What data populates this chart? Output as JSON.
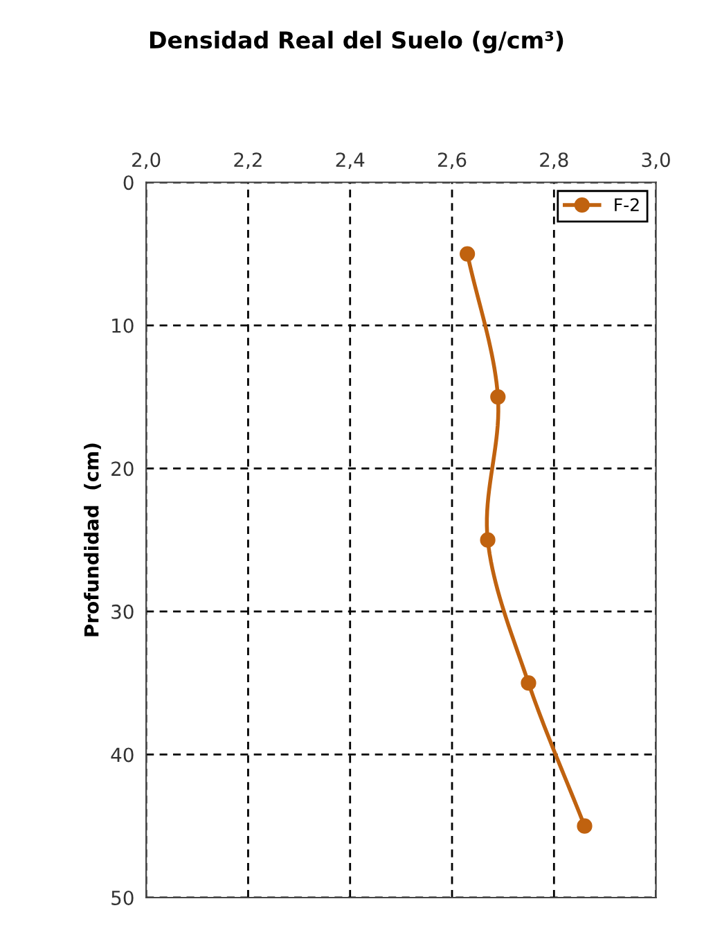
{
  "chart_data": {
    "type": "line",
    "title": "Densidad Real del Suelo (g/cm³)",
    "ylabel": "Profundidad  (cm)",
    "orientation": "horizontal",
    "x": [
      5,
      15,
      25,
      35,
      45
    ],
    "series": [
      {
        "name": "F-2",
        "color": "#c0620f",
        "values": [
          2.63,
          2.69,
          2.67,
          2.75,
          2.86
        ]
      }
    ],
    "xlim": [
      2.0,
      3.0
    ],
    "xticks": [
      {
        "value": 2.0,
        "label": "2,0"
      },
      {
        "value": 2.2,
        "label": "2,2"
      },
      {
        "value": 2.4,
        "label": "2,4"
      },
      {
        "value": 2.6,
        "label": "2,6"
      },
      {
        "value": 2.8,
        "label": "2,8"
      },
      {
        "value": 3.0,
        "label": "3,0"
      }
    ],
    "ylim": [
      50,
      0
    ],
    "yticks": [
      0,
      10,
      20,
      30,
      40,
      50
    ],
    "grid": true,
    "legend": "top right",
    "marker": "circle",
    "line_style": "solid"
  }
}
